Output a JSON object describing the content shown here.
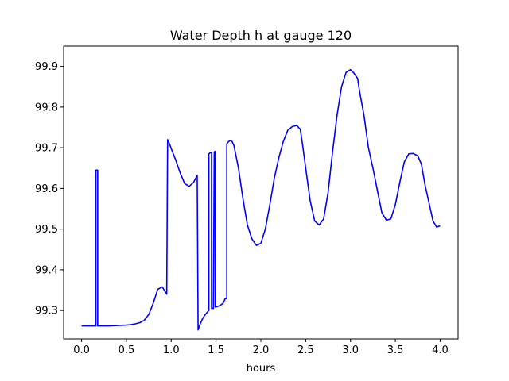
{
  "chart_data": {
    "type": "line",
    "title": "Water Depth h at gauge 120",
    "xlabel": "hours",
    "ylabel": "",
    "xlim": [
      -0.2,
      4.2
    ],
    "ylim": [
      99.23,
      99.95
    ],
    "x_ticks": [
      0.0,
      0.5,
      1.0,
      1.5,
      2.0,
      2.5,
      3.0,
      3.5,
      4.0
    ],
    "x_tick_labels": [
      "0.0",
      "0.5",
      "1.0",
      "1.5",
      "2.0",
      "2.5",
      "3.0",
      "3.5",
      "4.0"
    ],
    "y_ticks": [
      99.3,
      99.4,
      99.5,
      99.6,
      99.7,
      99.8,
      99.9
    ],
    "y_tick_labels": [
      "99.3",
      "99.4",
      "99.5",
      "99.6",
      "99.7",
      "99.8",
      "99.9"
    ],
    "grid": false,
    "legend": "none",
    "series": [
      {
        "color": "#0000ff",
        "x": [
          0.0,
          0.15,
          0.16,
          0.16,
          0.18,
          0.18,
          0.2,
          0.3,
          0.4,
          0.5,
          0.55,
          0.6,
          0.65,
          0.7,
          0.75,
          0.8,
          0.85,
          0.9,
          0.95,
          0.96,
          0.98,
          1.0,
          1.05,
          1.1,
          1.15,
          1.2,
          1.25,
          1.29,
          1.3,
          1.32,
          1.35,
          1.38,
          1.42,
          1.42,
          1.43,
          1.44,
          1.45,
          1.45,
          1.47,
          1.48,
          1.49,
          1.49,
          1.52,
          1.55,
          1.58,
          1.6,
          1.62,
          1.62,
          1.64,
          1.66,
          1.68,
          1.7,
          1.75,
          1.8,
          1.85,
          1.9,
          1.95,
          2.0,
          2.05,
          2.1,
          2.15,
          2.2,
          2.25,
          2.3,
          2.35,
          2.4,
          2.44,
          2.47,
          2.5,
          2.55,
          2.6,
          2.65,
          2.7,
          2.75,
          2.8,
          2.85,
          2.9,
          2.95,
          3.0,
          3.04,
          3.08,
          3.1,
          3.15,
          3.2,
          3.25,
          3.3,
          3.35,
          3.4,
          3.45,
          3.5,
          3.55,
          3.6,
          3.65,
          3.7,
          3.75,
          3.79,
          3.83,
          3.88,
          3.92,
          3.96,
          4.0
        ],
        "y": [
          99.262,
          99.262,
          99.262,
          99.645,
          99.645,
          99.262,
          99.262,
          99.262,
          99.263,
          99.264,
          99.265,
          99.267,
          99.27,
          99.276,
          99.29,
          99.318,
          99.352,
          99.358,
          99.34,
          99.72,
          99.71,
          99.698,
          99.67,
          99.638,
          99.612,
          99.605,
          99.615,
          99.632,
          99.252,
          99.265,
          99.28,
          99.29,
          99.3,
          99.685,
          99.687,
          99.688,
          99.689,
          99.305,
          99.305,
          99.69,
          99.691,
          99.308,
          99.31,
          99.313,
          99.318,
          99.328,
          99.33,
          99.71,
          99.715,
          99.718,
          99.715,
          99.705,
          99.65,
          99.575,
          99.51,
          99.476,
          99.46,
          99.465,
          99.5,
          99.56,
          99.625,
          99.675,
          99.715,
          99.743,
          99.752,
          99.755,
          99.745,
          99.7,
          99.65,
          99.57,
          99.52,
          99.51,
          99.525,
          99.59,
          99.69,
          99.78,
          99.85,
          99.885,
          99.892,
          99.883,
          99.87,
          99.84,
          99.78,
          99.7,
          99.65,
          99.595,
          99.54,
          99.522,
          99.525,
          99.56,
          99.615,
          99.665,
          99.685,
          99.686,
          99.68,
          99.66,
          99.61,
          99.56,
          99.52,
          99.505,
          99.508
        ]
      }
    ]
  }
}
